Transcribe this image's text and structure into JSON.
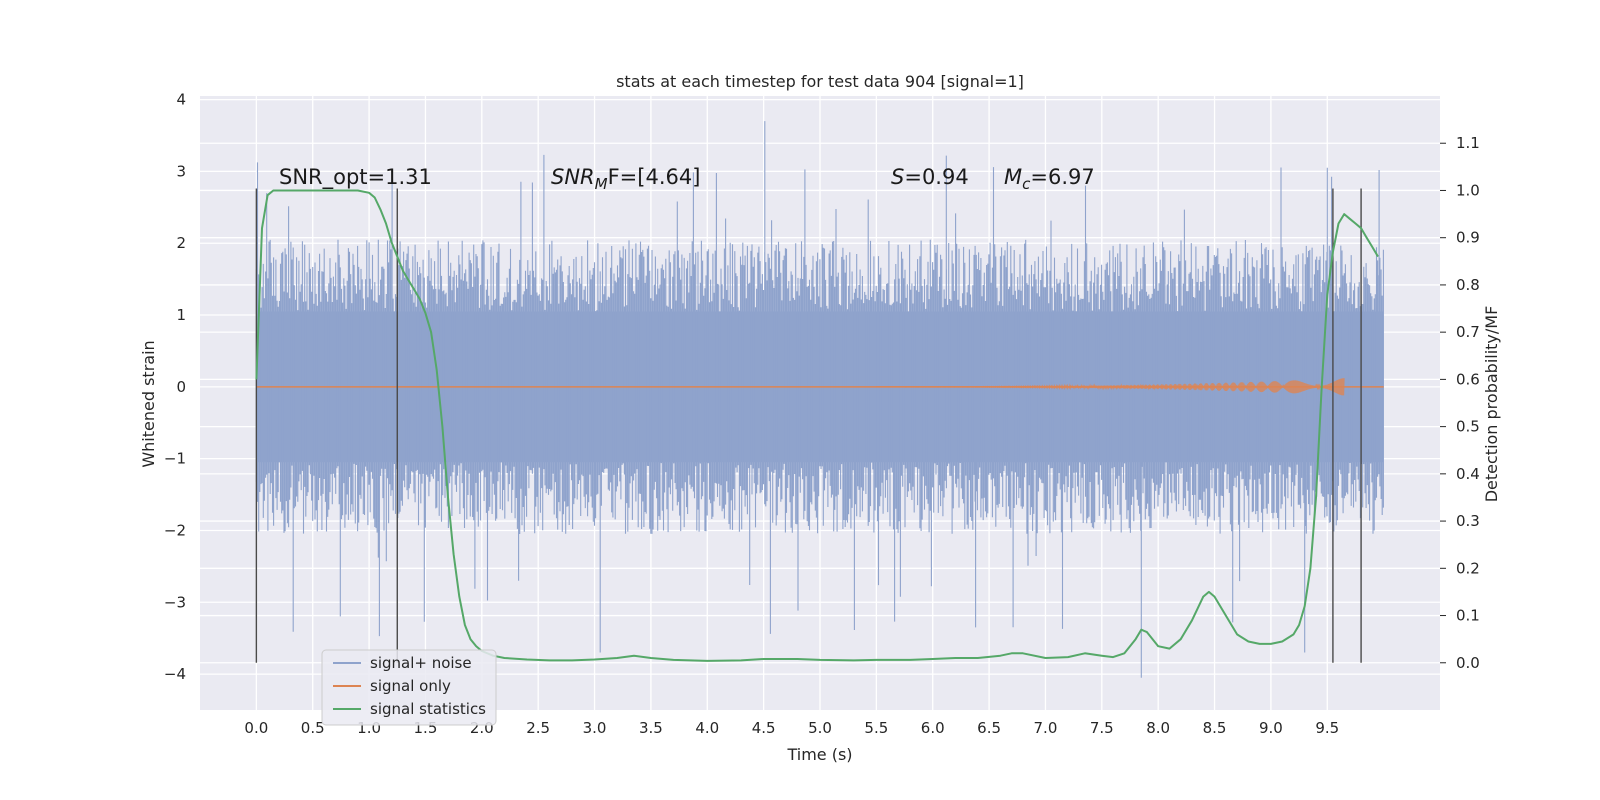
{
  "chart_data": {
    "type": "line",
    "title": "stats at each timestep for test data 904 [signal=1]",
    "xlabel": "Time (s)",
    "ylabel": "Whitened strain",
    "y2label": "Detection probability/MF",
    "xlim": [
      -0.5,
      10.5
    ],
    "ylim": [
      -4.5,
      4.05
    ],
    "y2lim": [
      -0.1,
      1.2
    ],
    "x_ticks": [
      "0.0",
      "0.5",
      "1.0",
      "1.5",
      "2.0",
      "2.5",
      "3.0",
      "3.5",
      "4.0",
      "4.5",
      "5.0",
      "5.5",
      "6.0",
      "6.5",
      "7.0",
      "7.5",
      "8.0",
      "8.5",
      "9.0",
      "9.5"
    ],
    "y_ticks": [
      "4",
      "3",
      "2",
      "1",
      "0",
      "−1",
      "−2",
      "−3",
      "−4"
    ],
    "y2_ticks": [
      "1.1",
      "1.0",
      "0.9",
      "0.8",
      "0.7",
      "0.6",
      "0.5",
      "0.4",
      "0.3",
      "0.2",
      "0.1",
      "0.0"
    ],
    "grid": true,
    "legend_position": "lower-left",
    "annotations": {
      "snr_opt": "SNR_opt=1.31",
      "snr_mf_base": "SNR",
      "snr_mf_sub": "M",
      "snr_mf_rest": "F=[4.64]",
      "s_base": "S",
      "s_rest": "=0.94",
      "mc_base": "M",
      "mc_sub": "c",
      "mc_rest": "=6.97"
    },
    "vertical_markers": [
      0.0,
      1.25,
      9.55,
      9.8
    ],
    "series": [
      {
        "name": "signal+ noise",
        "color": "#8fa3cc",
        "noise": {
          "t_start": 0.0,
          "t_end": 10.0,
          "core_amplitude": 1.05,
          "typical_peak": 2.3,
          "max_value": 3.7,
          "min_value": -4.05
        }
      },
      {
        "name": "signal only",
        "color": "#dd8452",
        "chirp": {
          "t_start": 0.0,
          "t_end": 10.0,
          "peak_time": 9.65,
          "peak_amplitude": 0.12
        }
      },
      {
        "name": "signal statistics",
        "color": "#55a868",
        "axis": "right",
        "x": [
          0.0,
          0.05,
          0.1,
          0.15,
          0.2,
          0.3,
          0.4,
          0.5,
          0.6,
          0.7,
          0.8,
          0.9,
          1.0,
          1.05,
          1.1,
          1.15,
          1.2,
          1.25,
          1.3,
          1.35,
          1.4,
          1.45,
          1.5,
          1.55,
          1.6,
          1.65,
          1.7,
          1.75,
          1.8,
          1.85,
          1.9,
          1.95,
          2.0,
          2.1,
          2.2,
          2.4,
          2.6,
          2.8,
          3.0,
          3.2,
          3.35,
          3.5,
          3.7,
          4.0,
          4.3,
          4.5,
          4.8,
          5.0,
          5.3,
          5.5,
          5.8,
          6.0,
          6.2,
          6.4,
          6.6,
          6.7,
          6.8,
          7.0,
          7.2,
          7.35,
          7.5,
          7.6,
          7.7,
          7.8,
          7.85,
          7.9,
          8.0,
          8.1,
          8.2,
          8.3,
          8.4,
          8.45,
          8.5,
          8.6,
          8.7,
          8.8,
          8.9,
          9.0,
          9.1,
          9.2,
          9.25,
          9.3,
          9.35,
          9.4,
          9.45,
          9.5,
          9.55,
          9.6,
          9.65,
          9.7,
          9.75,
          9.8,
          9.85,
          9.9,
          9.95
        ],
        "values": [
          0.6,
          0.92,
          0.99,
          1.0,
          1.0,
          1.0,
          1.0,
          1.0,
          1.0,
          1.0,
          1.0,
          1.0,
          0.995,
          0.985,
          0.96,
          0.93,
          0.89,
          0.86,
          0.83,
          0.81,
          0.79,
          0.77,
          0.74,
          0.7,
          0.62,
          0.5,
          0.35,
          0.23,
          0.14,
          0.08,
          0.05,
          0.035,
          0.025,
          0.015,
          0.01,
          0.007,
          0.005,
          0.005,
          0.007,
          0.01,
          0.015,
          0.01,
          0.006,
          0.004,
          0.005,
          0.008,
          0.008,
          0.006,
          0.005,
          0.006,
          0.006,
          0.008,
          0.01,
          0.01,
          0.015,
          0.02,
          0.02,
          0.01,
          0.012,
          0.02,
          0.015,
          0.012,
          0.02,
          0.05,
          0.07,
          0.065,
          0.035,
          0.03,
          0.05,
          0.09,
          0.14,
          0.15,
          0.14,
          0.1,
          0.06,
          0.045,
          0.04,
          0.04,
          0.045,
          0.06,
          0.08,
          0.12,
          0.2,
          0.35,
          0.58,
          0.78,
          0.87,
          0.93,
          0.95,
          0.94,
          0.93,
          0.92,
          0.9,
          0.88,
          0.86
        ]
      }
    ]
  }
}
